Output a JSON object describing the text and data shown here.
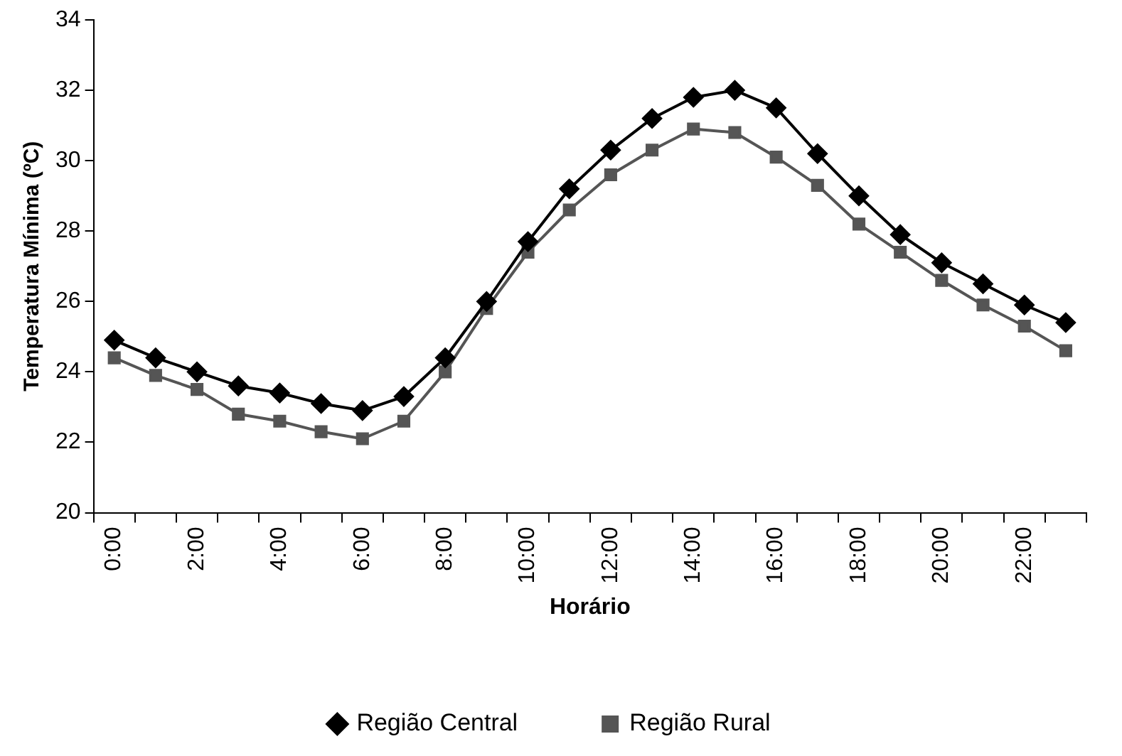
{
  "chart_data": {
    "type": "line",
    "xlabel": "Horário",
    "ylabel": "Temperatura Mínima (ºC)",
    "categories": [
      "0:00",
      null,
      "2:00",
      null,
      "4:00",
      null,
      "6:00",
      null,
      "8:00",
      null,
      "10:00",
      null,
      "12:00",
      null,
      "14:00",
      null,
      "16:00",
      null,
      "18:00",
      null,
      "20:00",
      null,
      "22:00",
      null
    ],
    "series": [
      {
        "name": "Região Central",
        "color": "#000000",
        "marker": "diamond",
        "values": [
          24.9,
          24.4,
          24.0,
          23.6,
          23.4,
          23.1,
          22.9,
          23.3,
          24.4,
          26.0,
          27.7,
          29.2,
          30.3,
          31.2,
          31.8,
          32.0,
          31.5,
          30.2,
          29.0,
          27.9,
          27.1,
          26.5,
          25.9,
          25.4
        ]
      },
      {
        "name": "Região Rural",
        "color": "#555555",
        "marker": "square",
        "values": [
          24.4,
          23.9,
          23.5,
          22.8,
          22.6,
          22.3,
          22.1,
          22.6,
          24.0,
          25.8,
          27.4,
          28.6,
          29.6,
          30.3,
          30.9,
          30.8,
          30.1,
          29.3,
          28.2,
          27.4,
          26.6,
          25.9,
          25.3,
          24.6
        ]
      }
    ],
    "ylim": [
      20,
      34
    ],
    "yticks": [
      20,
      22,
      24,
      26,
      28,
      30,
      32,
      34
    ],
    "grid": false,
    "legend": "bottom",
    "line_style": "solid"
  }
}
